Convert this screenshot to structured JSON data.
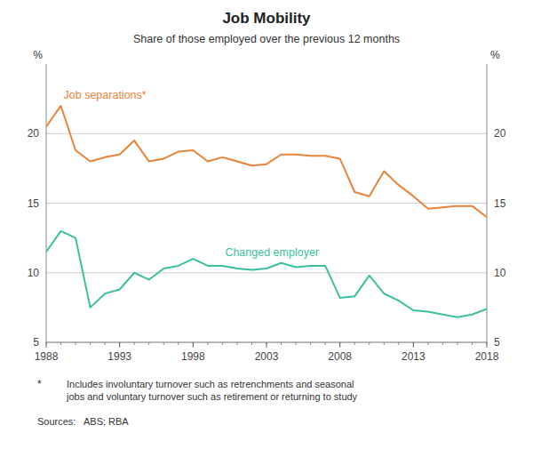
{
  "chart_data": {
    "type": "line",
    "title": "Job Mobility",
    "subtitle": "Share of those employed over the previous 12 months",
    "y_label": "%",
    "y2_label": "%",
    "x": [
      1988,
      1989,
      1990,
      1991,
      1992,
      1993,
      1994,
      1995,
      1996,
      1997,
      1998,
      1999,
      2000,
      2001,
      2002,
      2003,
      2004,
      2005,
      2006,
      2007,
      2008,
      2009,
      2010,
      2011,
      2012,
      2013,
      2014,
      2015,
      2016,
      2017,
      2018
    ],
    "xlim": [
      1988,
      2018
    ],
    "xticks": [
      1988,
      1993,
      1998,
      2003,
      2008,
      2013,
      2018
    ],
    "ylim": [
      5,
      25
    ],
    "yticks": [
      5,
      10,
      15,
      20
    ],
    "y2lim": [
      5,
      25
    ],
    "y2ticks": [
      5,
      10,
      15,
      20
    ],
    "grid": true,
    "series": [
      {
        "name": "Job separations*",
        "color": "#E8833A",
        "values": [
          20.5,
          22.0,
          18.8,
          18.0,
          18.3,
          18.5,
          19.5,
          18.0,
          18.2,
          18.7,
          18.8,
          18.0,
          18.3,
          18.0,
          17.7,
          17.8,
          18.5,
          18.5,
          18.4,
          18.4,
          18.2,
          15.8,
          15.5,
          17.3,
          16.3,
          15.5,
          14.6,
          14.7,
          14.8,
          14.8,
          14.0
        ]
      },
      {
        "name": "Changed employer",
        "color": "#3BBF9E",
        "values": [
          11.5,
          13.0,
          12.5,
          7.5,
          8.5,
          8.8,
          10.0,
          9.5,
          10.3,
          10.5,
          11.0,
          10.5,
          10.5,
          10.3,
          10.2,
          10.3,
          10.7,
          10.4,
          10.5,
          10.5,
          8.2,
          8.3,
          9.8,
          8.5,
          8.0,
          7.3,
          7.2,
          7.0,
          6.8,
          7.0,
          7.4
        ]
      }
    ],
    "notes": [
      "*",
      "Includes involuntary turnover such as retrenchments and seasonal\njobs and voluntary turnover such as retirement or returning to study",
      "Sources:   ABS; RBA"
    ]
  }
}
